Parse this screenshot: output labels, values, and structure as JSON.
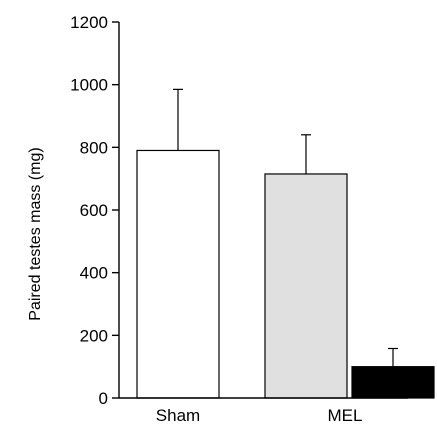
{
  "chart_data": {
    "type": "bar",
    "title": "",
    "xlabel": "",
    "ylabel": "Paired testes mass (mg)",
    "ylim": [
      0,
      1200
    ],
    "yticks": [
      0,
      200,
      400,
      600,
      800,
      1000,
      1200
    ],
    "grid": false,
    "legend": "none",
    "categories": [
      "Sham",
      "MEL"
    ],
    "bars": [
      {
        "group": "Sham",
        "value": 790,
        "error": 195,
        "fill": "#ffffff"
      },
      {
        "group": "MEL",
        "value": 715,
        "error": 125,
        "fill": "#e0e0e0"
      },
      {
        "group": "MEL",
        "value": 100,
        "error": 58,
        "fill": "#000000"
      }
    ]
  }
}
